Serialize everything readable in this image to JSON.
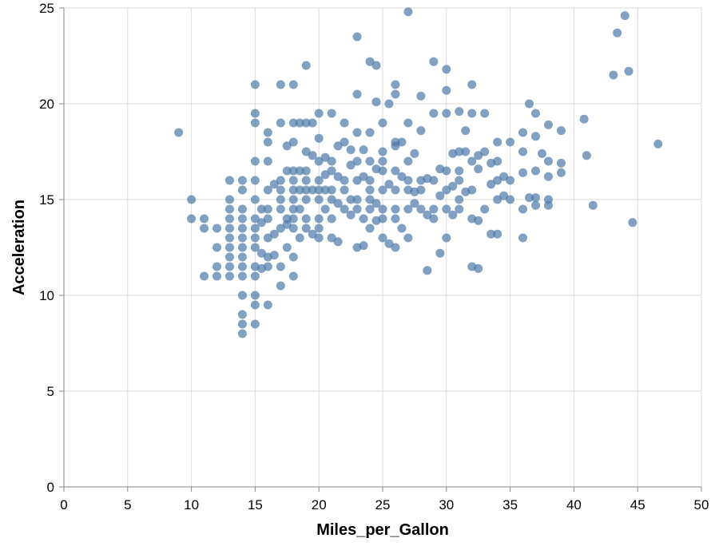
{
  "chart_data": {
    "type": "scatter",
    "title": "",
    "xlabel": "Miles_per_Gallon",
    "ylabel": "Acceleration",
    "xlim": [
      0,
      50
    ],
    "ylim": [
      0,
      25
    ],
    "x_ticks": [
      0,
      5,
      10,
      15,
      20,
      25,
      30,
      35,
      40,
      45,
      50
    ],
    "y_ticks": [
      0,
      5,
      10,
      15,
      20,
      25
    ],
    "grid": true,
    "legend": "none",
    "point_color": "#4c78a8",
    "points": [
      [
        9,
        18.5
      ],
      [
        10,
        15
      ],
      [
        10,
        14
      ],
      [
        11,
        13.5
      ],
      [
        11,
        11
      ],
      [
        11,
        14
      ],
      [
        12,
        12.5
      ],
      [
        12,
        11.5
      ],
      [
        12,
        13.5
      ],
      [
        12,
        11
      ],
      [
        13,
        16
      ],
      [
        13,
        15
      ],
      [
        13,
        14.5
      ],
      [
        13,
        14
      ],
      [
        13,
        13.5
      ],
      [
        13,
        13
      ],
      [
        13,
        12.5
      ],
      [
        13,
        12
      ],
      [
        13,
        11.5
      ],
      [
        13,
        11
      ],
      [
        14,
        16
      ],
      [
        14,
        15.5
      ],
      [
        14,
        14.5
      ],
      [
        14,
        14
      ],
      [
        14,
        13.5
      ],
      [
        14,
        13
      ],
      [
        14,
        12.5
      ],
      [
        14,
        12
      ],
      [
        14,
        11.5
      ],
      [
        14,
        11
      ],
      [
        14,
        10
      ],
      [
        14,
        9
      ],
      [
        14,
        8.5
      ],
      [
        14,
        8
      ],
      [
        15,
        21
      ],
      [
        15,
        19.5
      ],
      [
        15,
        19
      ],
      [
        15,
        17
      ],
      [
        15,
        16
      ],
      [
        15,
        15
      ],
      [
        15,
        14
      ],
      [
        15,
        13.5
      ],
      [
        15,
        13
      ],
      [
        15,
        12.5
      ],
      [
        15,
        11.5
      ],
      [
        15,
        11
      ],
      [
        15,
        10
      ],
      [
        15,
        9.5
      ],
      [
        15,
        8.5
      ],
      [
        15.5,
        14.5
      ],
      [
        15.5,
        13.8
      ],
      [
        15.5,
        12.2
      ],
      [
        15.5,
        11.4
      ],
      [
        16,
        18.5
      ],
      [
        16,
        18
      ],
      [
        16,
        17
      ],
      [
        16,
        15.5
      ],
      [
        16,
        14.5
      ],
      [
        16,
        14
      ],
      [
        16,
        13
      ],
      [
        16,
        12
      ],
      [
        16,
        11.5
      ],
      [
        16,
        9.5
      ],
      [
        16.5,
        15.8
      ],
      [
        16.5,
        13.2
      ],
      [
        16.5,
        12.1
      ],
      [
        17,
        21
      ],
      [
        17,
        19
      ],
      [
        17,
        16
      ],
      [
        17,
        15.5
      ],
      [
        17,
        15
      ],
      [
        17,
        14.5
      ],
      [
        17,
        13.5
      ],
      [
        17,
        11.5
      ],
      [
        17,
        10.5
      ],
      [
        17.5,
        17.8
      ],
      [
        17.5,
        16.5
      ],
      [
        17.5,
        14
      ],
      [
        17.5,
        13.7
      ],
      [
        17.5,
        12.5
      ],
      [
        18,
        21
      ],
      [
        18,
        19
      ],
      [
        18,
        18
      ],
      [
        18,
        16.5
      ],
      [
        18,
        16
      ],
      [
        18,
        15.5
      ],
      [
        18,
        15
      ],
      [
        18,
        14.5
      ],
      [
        18,
        14
      ],
      [
        18,
        13.5
      ],
      [
        18,
        12
      ],
      [
        18,
        11
      ],
      [
        18.5,
        19
      ],
      [
        18.5,
        16.5
      ],
      [
        18.5,
        15.5
      ],
      [
        18.5,
        14.5
      ],
      [
        18.5,
        13
      ],
      [
        19,
        22
      ],
      [
        19,
        19
      ],
      [
        19,
        17.5
      ],
      [
        19,
        16.5
      ],
      [
        19,
        16
      ],
      [
        19,
        15.5
      ],
      [
        19,
        15
      ],
      [
        19,
        14
      ],
      [
        19,
        13.5
      ],
      [
        19.5,
        19
      ],
      [
        19.5,
        17.3
      ],
      [
        19.5,
        15.5
      ],
      [
        19.5,
        13.2
      ],
      [
        20,
        19.5
      ],
      [
        20,
        18.2
      ],
      [
        20,
        17
      ],
      [
        20,
        16
      ],
      [
        20,
        15.5
      ],
      [
        20,
        15
      ],
      [
        20,
        14
      ],
      [
        20,
        13.5
      ],
      [
        20,
        13
      ],
      [
        20.5,
        17.2
      ],
      [
        20.5,
        16.3
      ],
      [
        20.5,
        15.5
      ],
      [
        20.5,
        14.5
      ],
      [
        21,
        19.5
      ],
      [
        21,
        17
      ],
      [
        21,
        16.5
      ],
      [
        21,
        15.5
      ],
      [
        21,
        15
      ],
      [
        21,
        14
      ],
      [
        21,
        13
      ],
      [
        21.5,
        17.8
      ],
      [
        21.5,
        16.2
      ],
      [
        21.5,
        14.8
      ],
      [
        21.5,
        12.8
      ],
      [
        22,
        19
      ],
      [
        22,
        18
      ],
      [
        22,
        16
      ],
      [
        22,
        15.5
      ],
      [
        22,
        14.5
      ],
      [
        22.5,
        17.6
      ],
      [
        22.5,
        16.8
      ],
      [
        22.5,
        15
      ],
      [
        22.5,
        14.2
      ],
      [
        23,
        23.5
      ],
      [
        23,
        20.5
      ],
      [
        23,
        18.5
      ],
      [
        23,
        17
      ],
      [
        23,
        16
      ],
      [
        23,
        15
      ],
      [
        23,
        14.5
      ],
      [
        23,
        12.5
      ],
      [
        23.5,
        17.6
      ],
      [
        23.5,
        16.2
      ],
      [
        23.5,
        14
      ],
      [
        23.5,
        12.6
      ],
      [
        24,
        22.2
      ],
      [
        24,
        18.5
      ],
      [
        24,
        17
      ],
      [
        24,
        16
      ],
      [
        24,
        15.5
      ],
      [
        24,
        15
      ],
      [
        24,
        14.5
      ],
      [
        24,
        13.5
      ],
      [
        24.5,
        22
      ],
      [
        24.5,
        20.1
      ],
      [
        24.5,
        16.6
      ],
      [
        24.5,
        14.8
      ],
      [
        24.5,
        13.9
      ],
      [
        25,
        19
      ],
      [
        25,
        17.5
      ],
      [
        25,
        17
      ],
      [
        25,
        16.5
      ],
      [
        25,
        15.5
      ],
      [
        25,
        14.5
      ],
      [
        25,
        14
      ],
      [
        25,
        13
      ],
      [
        25.5,
        20
      ],
      [
        25.5,
        15.8
      ],
      [
        25.5,
        12.7
      ],
      [
        26,
        21
      ],
      [
        26,
        20.5
      ],
      [
        26,
        18
      ],
      [
        26,
        17.8
      ],
      [
        26,
        16.5
      ],
      [
        26,
        15.5
      ],
      [
        26,
        14.5
      ],
      [
        26,
        14
      ],
      [
        26,
        12.5
      ],
      [
        26.5,
        18
      ],
      [
        26.5,
        16.2
      ],
      [
        26.5,
        13.5
      ],
      [
        27,
        24.8
      ],
      [
        27,
        19
      ],
      [
        27,
        17
      ],
      [
        27,
        16
      ],
      [
        27,
        15.5
      ],
      [
        27,
        14.5
      ],
      [
        27,
        13
      ],
      [
        27.5,
        17.4
      ],
      [
        27.5,
        15.4
      ],
      [
        27.5,
        14.8
      ],
      [
        28,
        20.4
      ],
      [
        28,
        18.6
      ],
      [
        28,
        16
      ],
      [
        28,
        15.5
      ],
      [
        28,
        14.5
      ],
      [
        28.5,
        16.1
      ],
      [
        28.5,
        14.2
      ],
      [
        28.5,
        11.3
      ],
      [
        29,
        22.2
      ],
      [
        29,
        19.5
      ],
      [
        29,
        16
      ],
      [
        29,
        14.5
      ],
      [
        29,
        14
      ],
      [
        29.5,
        16.6
      ],
      [
        29.5,
        15.2
      ],
      [
        29.5,
        12.2
      ],
      [
        30,
        21.8
      ],
      [
        30,
        20.7
      ],
      [
        30,
        19.5
      ],
      [
        30,
        16.5
      ],
      [
        30,
        15.5
      ],
      [
        30,
        14.5
      ],
      [
        30,
        13
      ],
      [
        30.5,
        17.4
      ],
      [
        30.5,
        15.7
      ],
      [
        30.5,
        14.2
      ],
      [
        31,
        19.6
      ],
      [
        31,
        17.5
      ],
      [
        31,
        16.5
      ],
      [
        31,
        16
      ],
      [
        31,
        15
      ],
      [
        31,
        14.5
      ],
      [
        31.5,
        18.6
      ],
      [
        31.5,
        17.5
      ],
      [
        31.5,
        15.4
      ],
      [
        32,
        21
      ],
      [
        32,
        19.5
      ],
      [
        32,
        17
      ],
      [
        32,
        15.5
      ],
      [
        32,
        14
      ],
      [
        32,
        11.5
      ],
      [
        32.5,
        17.3
      ],
      [
        32.5,
        16.6
      ],
      [
        32.5,
        13.9
      ],
      [
        32.5,
        11.4
      ],
      [
        33,
        19.5
      ],
      [
        33,
        17.5
      ],
      [
        33,
        14.5
      ],
      [
        33.5,
        16.9
      ],
      [
        33.5,
        15.8
      ],
      [
        33.5,
        13.2
      ],
      [
        34,
        18
      ],
      [
        34,
        17
      ],
      [
        34,
        16
      ],
      [
        34,
        15
      ],
      [
        34,
        13.2
      ],
      [
        34.5,
        16.2
      ],
      [
        34.5,
        15.2
      ],
      [
        35,
        18
      ],
      [
        35,
        16
      ],
      [
        35,
        15
      ],
      [
        36,
        18.5
      ],
      [
        36,
        17.5
      ],
      [
        36,
        16.4
      ],
      [
        36,
        14.5
      ],
      [
        36,
        13
      ],
      [
        36.5,
        20
      ],
      [
        36.5,
        15.1
      ],
      [
        37,
        19.5
      ],
      [
        37,
        18.3
      ],
      [
        37,
        16.5
      ],
      [
        37,
        15.1
      ],
      [
        37,
        14.7
      ],
      [
        37.5,
        17.4
      ],
      [
        38,
        18.9
      ],
      [
        38,
        17
      ],
      [
        38,
        16.2
      ],
      [
        38,
        15
      ],
      [
        38,
        14.7
      ],
      [
        39,
        18.6
      ],
      [
        39,
        16.9
      ],
      [
        39,
        16.4
      ],
      [
        40.8,
        19.2
      ],
      [
        41,
        17.3
      ],
      [
        41.5,
        14.7
      ],
      [
        43.1,
        21.5
      ],
      [
        43.4,
        23.7
      ],
      [
        44,
        24.6
      ],
      [
        44.3,
        21.7
      ],
      [
        44.6,
        13.8
      ],
      [
        46.6,
        17.9
      ]
    ]
  }
}
